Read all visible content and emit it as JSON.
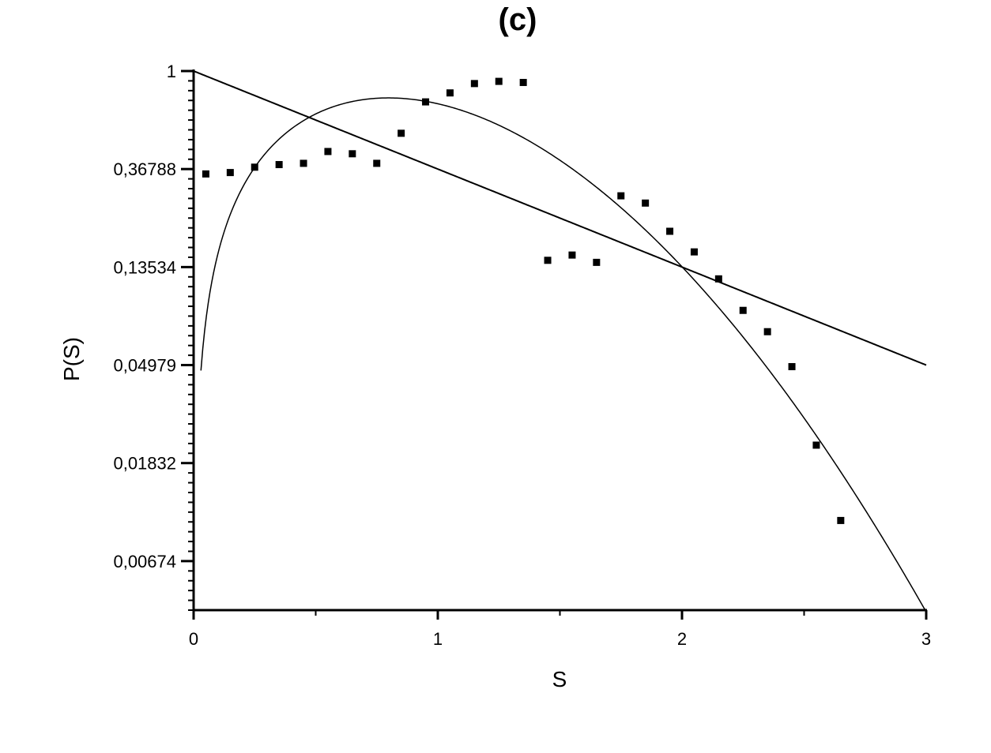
{
  "chart_data": {
    "type": "scatter",
    "title": "(c)",
    "xlabel": "S",
    "ylabel": "P(S)",
    "xlim": [
      0,
      3
    ],
    "ylim_log_natural": [
      -5.5,
      0
    ],
    "y_scale": "log (base e)",
    "x_ticks": [
      {
        "value": 0,
        "label": "0"
      },
      {
        "value": 1,
        "label": "1"
      },
      {
        "value": 2,
        "label": "2"
      },
      {
        "value": 3,
        "label": "3"
      }
    ],
    "y_ticks": [
      {
        "value": 1,
        "label": "1"
      },
      {
        "value": 0.36788,
        "label": "0,36788"
      },
      {
        "value": 0.13534,
        "label": "0,13534"
      },
      {
        "value": 0.04979,
        "label": "0,04979"
      },
      {
        "value": 0.01832,
        "label": "0,01832"
      },
      {
        "value": 0.00674,
        "label": "0,00674"
      }
    ],
    "points": [
      {
        "x": 0.05,
        "y": 0.35
      },
      {
        "x": 0.15,
        "y": 0.355
      },
      {
        "x": 0.25,
        "y": 0.375
      },
      {
        "x": 0.35,
        "y": 0.385
      },
      {
        "x": 0.45,
        "y": 0.39
      },
      {
        "x": 0.55,
        "y": 0.44
      },
      {
        "x": 0.65,
        "y": 0.43
      },
      {
        "x": 0.75,
        "y": 0.39
      },
      {
        "x": 0.85,
        "y": 0.53
      },
      {
        "x": 0.95,
        "y": 0.73
      },
      {
        "x": 1.05,
        "y": 0.8
      },
      {
        "x": 1.15,
        "y": 0.88
      },
      {
        "x": 1.25,
        "y": 0.9
      },
      {
        "x": 1.35,
        "y": 0.89
      },
      {
        "x": 1.45,
        "y": 0.145
      },
      {
        "x": 1.55,
        "y": 0.153
      },
      {
        "x": 1.65,
        "y": 0.142
      },
      {
        "x": 1.75,
        "y": 0.28
      },
      {
        "x": 1.85,
        "y": 0.26
      },
      {
        "x": 1.95,
        "y": 0.195
      },
      {
        "x": 2.05,
        "y": 0.158
      },
      {
        "x": 2.15,
        "y": 0.12
      },
      {
        "x": 2.25,
        "y": 0.087
      },
      {
        "x": 2.35,
        "y": 0.07
      },
      {
        "x": 2.45,
        "y": 0.049
      },
      {
        "x": 2.55,
        "y": 0.022
      },
      {
        "x": 2.65,
        "y": 0.0102
      }
    ],
    "curves": [
      {
        "kind": "exponential",
        "formula": "exp(-s)",
        "x_range": [
          0,
          3
        ]
      },
      {
        "kind": "wigner",
        "formula": "(pi/2) s exp(-pi s^2/4)",
        "x_range": [
          0.03,
          3
        ]
      }
    ],
    "grid": false,
    "legend": "none"
  }
}
